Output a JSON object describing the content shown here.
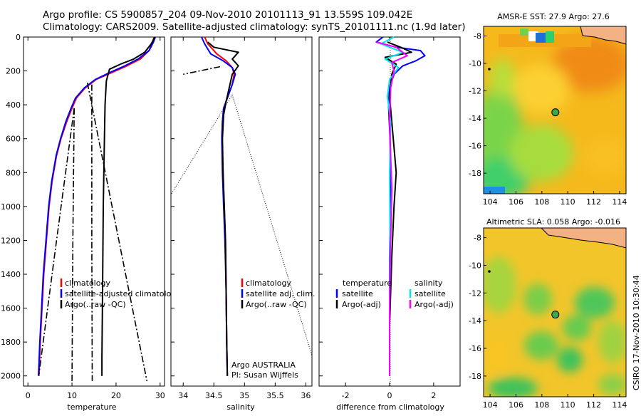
{
  "header": {
    "line1": "Argo profile: CS 5900857_204 09-Nov-2010 20101113_91 13.559S 109.042E",
    "line2": "Climatology: CARS2009. Satellite-adjusted climatology: synTS_20101111.nc (1.9d later)"
  },
  "footer_note": "CSIRO 17-Nov-2010 10:30:44",
  "colors": {
    "climatology": "#ff0000",
    "satellite": "#0000ff",
    "argo": "#000000",
    "cyan": "#00e5ee",
    "magenta": "#ff00ff",
    "land": "#f4b183"
  },
  "chart_data": [
    {
      "type": "line",
      "xlabel": "temperature",
      "ylabel": "",
      "xlim": [
        -1,
        31
      ],
      "ylim": [
        2060,
        0
      ],
      "xticks": [
        0,
        10,
        20,
        30
      ],
      "yticks": [
        0,
        200,
        400,
        600,
        800,
        1000,
        1200,
        1400,
        1600,
        1800,
        2000
      ],
      "legend": {
        "position": "lower-left",
        "entries": [
          "climatology",
          "satellite-adjusted climatology",
          "Argo(..raw -QC)"
        ]
      },
      "series": [
        {
          "name": "climatology",
          "color": "red",
          "style": "solid",
          "x": [
            28.6,
            28.3,
            27.5,
            25.5,
            22.5,
            19.0,
            15.5,
            13.0,
            11.0,
            10.0,
            8.8,
            7.5,
            6.5,
            5.5,
            4.8,
            4.2,
            3.6,
            3.2,
            2.8,
            2.5
          ],
          "y": [
            0,
            30,
            80,
            130,
            170,
            210,
            250,
            300,
            360,
            420,
            500,
            600,
            700,
            850,
            1000,
            1200,
            1400,
            1600,
            1800,
            2000
          ]
        },
        {
          "name": "satellite-adjusted climatology",
          "color": "blue",
          "style": "solid",
          "x": [
            28.9,
            28.5,
            27.5,
            25.0,
            22.0,
            18.5,
            15.3,
            12.8,
            10.8,
            9.8,
            8.6,
            7.4,
            6.4,
            5.4,
            4.7,
            4.1,
            3.5,
            3.1,
            2.7,
            2.4
          ],
          "y": [
            0,
            30,
            80,
            130,
            170,
            210,
            250,
            300,
            360,
            420,
            500,
            600,
            700,
            850,
            1000,
            1200,
            1400,
            1600,
            1800,
            2000
          ]
        },
        {
          "name": "Argo(..raw -QC)",
          "color": "black",
          "style": "solid",
          "x": [
            28.8,
            28.0,
            26.5,
            24.0,
            21.0,
            18.5,
            17.8,
            17.5,
            17.3,
            17.1,
            17.0,
            16.9,
            16.8,
            16.8
          ],
          "y": [
            0,
            40,
            90,
            130,
            160,
            190,
            260,
            400,
            700,
            1000,
            1300,
            1600,
            1900,
            2000
          ]
        },
        {
          "name": "Argo raw profile",
          "color": "black",
          "style": "dashdot",
          "x": [
            14.5,
            14.5,
            14.6
          ],
          "y": [
            280,
            1200,
            2030
          ]
        },
        {
          "name": "Argo raw profile",
          "color": "black",
          "style": "dashdot",
          "x": [
            13.5,
            27.0
          ],
          "y": [
            270,
            2030
          ]
        },
        {
          "name": "Argo raw profile",
          "color": "black",
          "style": "dashdot",
          "x": [
            10.5,
            10.2,
            10.0
          ],
          "y": [
            420,
            1200,
            2030
          ]
        },
        {
          "name": "Argo raw profile",
          "color": "black",
          "style": "dashdot",
          "x": [
            10.5,
            6.5,
            2.5
          ],
          "y": [
            420,
            1200,
            1990
          ]
        }
      ]
    },
    {
      "type": "line",
      "xlabel": "salinity",
      "ylabel": "",
      "xlim": [
        33.8,
        36.1
      ],
      "ylim": [
        2060,
        0
      ],
      "xticks": [
        34,
        34.5,
        35,
        35.5,
        36
      ],
      "legend": {
        "position": "lower-right",
        "entries": [
          "climatology",
          "satellite adj. clim.",
          "Argo(..raw -QC)"
        ]
      },
      "annotations": [
        "Argo AUSTRALIA",
        "PI: Susan Wijffels"
      ],
      "series": [
        {
          "name": "climatology",
          "color": "red",
          "style": "solid",
          "x": [
            34.35,
            34.4,
            34.55,
            34.7,
            34.8,
            34.83,
            34.8,
            34.72,
            34.66,
            34.64,
            34.63,
            34.65,
            34.67,
            34.69,
            34.7,
            34.71,
            34.72
          ],
          "y": [
            0,
            40,
            100,
            140,
            180,
            220,
            280,
            360,
            420,
            500,
            600,
            800,
            1000,
            1200,
            1500,
            1800,
            2000
          ]
        },
        {
          "name": "satellite adj. clim.",
          "color": "blue",
          "style": "solid",
          "x": [
            34.3,
            34.35,
            34.45,
            34.65,
            34.8,
            34.85,
            34.8,
            34.72,
            34.66,
            34.64,
            34.63,
            34.64,
            34.66,
            34.68,
            34.7,
            34.71,
            34.72
          ],
          "y": [
            0,
            40,
            100,
            140,
            180,
            220,
            280,
            360,
            420,
            500,
            600,
            800,
            1000,
            1200,
            1500,
            1800,
            2000
          ]
        },
        {
          "name": "Argo(..raw -QC)",
          "color": "black",
          "style": "solid",
          "x": [
            34.4,
            34.5,
            34.9,
            34.8,
            34.9,
            34.8,
            34.75,
            34.7,
            34.66,
            34.64,
            34.65,
            34.67,
            34.69,
            34.7,
            34.71,
            34.72
          ],
          "y": [
            30,
            60,
            90,
            130,
            170,
            220,
            300,
            380,
            460,
            600,
            800,
            1000,
            1200,
            1500,
            1800,
            2000
          ]
        },
        {
          "name": "Argo raw profile",
          "color": "black",
          "style": "dashdot",
          "x": [
            34.6,
            34.0
          ],
          "y": [
            175,
            220
          ]
        },
        {
          "name": "Argo raw profile",
          "color": "black",
          "style": "dotted",
          "x": [
            34.8,
            33.8
          ],
          "y": [
            340,
            930
          ]
        },
        {
          "name": "Argo raw profile",
          "color": "black",
          "style": "dotted",
          "x": [
            34.8,
            36.1
          ],
          "y": [
            340,
            1880
          ]
        }
      ]
    },
    {
      "type": "line",
      "xlabel": "difference from climatology",
      "ylabel": "",
      "xlim": [
        -3.2,
        3.2
      ],
      "ylim": [
        2060,
        0
      ],
      "xticks": [
        -2,
        0,
        2
      ],
      "legend": {
        "position": "lower-center",
        "headers": [
          "temperature",
          "salinity"
        ],
        "entries": [
          "satellite",
          "Argo(-adj)",
          "satellite",
          "Argo(-adj)"
        ]
      },
      "series": [
        {
          "name": "temperature satellite",
          "color": "blue",
          "style": "solid",
          "x": [
            -0.3,
            -0.6,
            0.3,
            1.4,
            1.6,
            1.2,
            0.6,
            0.2,
            0.0,
            -0.05,
            0.02,
            0.05,
            0.0,
            0.0,
            0.0
          ],
          "y": [
            0,
            30,
            60,
            80,
            110,
            140,
            170,
            220,
            300,
            400,
            600,
            900,
            1300,
            1700,
            2000
          ]
        },
        {
          "name": "temperature Argo(-adj)",
          "color": "black",
          "style": "solid",
          "x": [
            -0.1,
            0.5,
            1.0,
            -0.2,
            0.3,
            0.1,
            0.0,
            0.1,
            0.3,
            0.2,
            0.1,
            0.0,
            0.0
          ],
          "y": [
            30,
            60,
            90,
            120,
            160,
            220,
            350,
            500,
            800,
            1000,
            1300,
            1700,
            2000
          ]
        },
        {
          "name": "salinity satellite",
          "color": "cyan",
          "style": "solid",
          "x": [
            0.2,
            -0.4,
            0.6,
            -0.2,
            0.4,
            0.0,
            -0.1,
            0.05,
            0.0,
            0.02,
            0.0,
            0.0
          ],
          "y": [
            0,
            40,
            90,
            130,
            180,
            250,
            350,
            500,
            800,
            1200,
            1600,
            2000
          ]
        },
        {
          "name": "salinity Argo(-adj)",
          "color": "magenta",
          "style": "solid",
          "x": [
            -0.6,
            0.3,
            0.8,
            0.1,
            0.2,
            0.05,
            0.0,
            0.05,
            0.1,
            0.05,
            0.0,
            0.0
          ],
          "y": [
            30,
            60,
            110,
            150,
            200,
            300,
            500,
            700,
            900,
            1200,
            1600,
            2000
          ]
        }
      ]
    },
    {
      "type": "heatmap",
      "title": "AMSR-E SST: 27.9 Argo: 27.6",
      "xlim": [
        103.5,
        114.5
      ],
      "ylim": [
        -19.5,
        -7.3
      ],
      "xticks": [
        104,
        106,
        108,
        110,
        112,
        114
      ],
      "yticks": [
        -8,
        -10,
        -12,
        -14,
        -16,
        -18
      ],
      "marker": {
        "lon": 109.042,
        "lat": -13.559
      }
    },
    {
      "type": "heatmap",
      "title": "Altimetric SLA: 0.058 Argo: -0.016",
      "xlim": [
        103.5,
        114.5
      ],
      "ylim": [
        -19.5,
        -7.3
      ],
      "xticks": [
        104,
        106,
        108,
        110,
        112,
        114
      ],
      "yticks": [
        -8,
        -10,
        -12,
        -14,
        -16,
        -18
      ],
      "marker": {
        "lon": 109.042,
        "lat": -13.559
      }
    }
  ]
}
